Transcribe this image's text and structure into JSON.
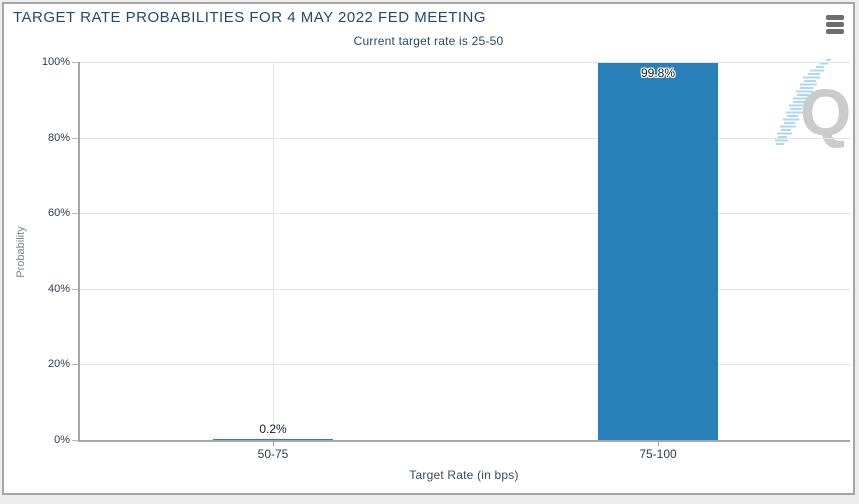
{
  "chart_data": {
    "type": "bar",
    "title": "TARGET RATE PROBABILITIES FOR 4 MAY 2022 FED MEETING",
    "subtitle": "Current target rate is 25-50",
    "categories": [
      "50-75",
      "75-100"
    ],
    "values": [
      0.2,
      99.8
    ],
    "value_labels": [
      "0.2%",
      "99.8%"
    ],
    "xlabel": "Target Rate (in bps)",
    "ylabel": "Probability",
    "y_ticks": [
      "100%",
      "80%",
      "60%",
      "40%",
      "20%",
      "0%"
    ],
    "ylim": [
      0,
      100
    ],
    "grid": true,
    "legend": false,
    "bar_color": "#2980b9"
  },
  "watermark": {
    "letter": "Q"
  },
  "colors": {
    "title_text": "#25496e",
    "bar_fill": "#2980b9",
    "axis_line": "#a6a6a6",
    "gridline": "#e3e3e3",
    "tick_label": "#2e3c4c",
    "menu_icon": "#6e6e6e",
    "watermark_gray": "#cbcbcb",
    "watermark_blue": "#aed8ee"
  }
}
